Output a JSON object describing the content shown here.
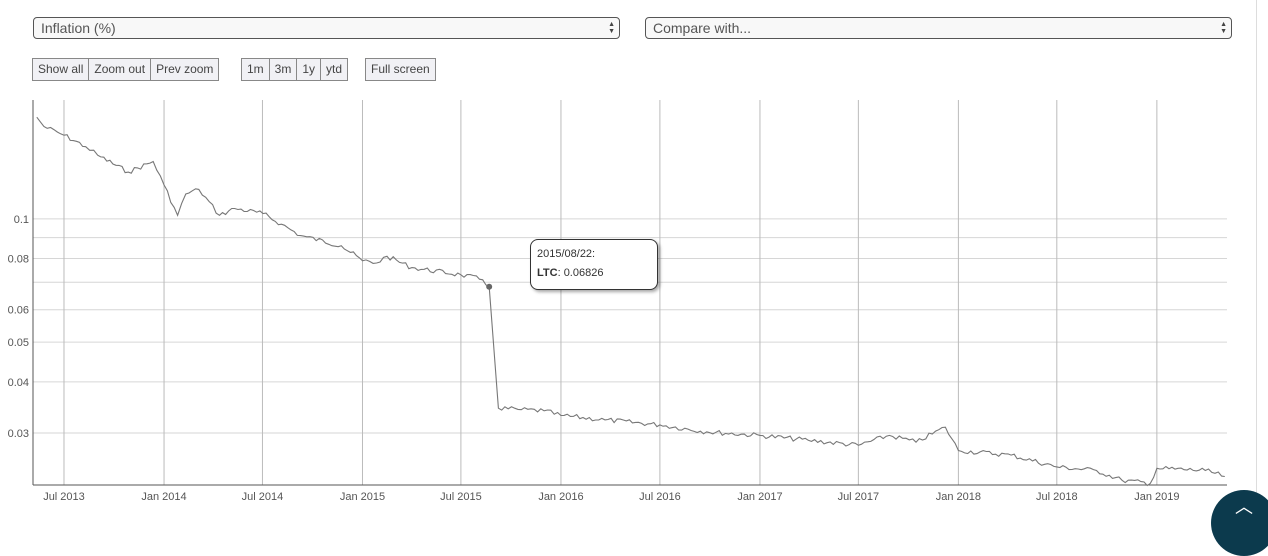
{
  "controls": {
    "metric_select": "Inflation (%)",
    "compare_select": "Compare with...",
    "zoom_buttons": [
      "Show all",
      "Zoom out",
      "Prev zoom"
    ],
    "range_buttons": [
      "1m",
      "3m",
      "1y",
      "ytd"
    ],
    "fullscreen": "Full screen"
  },
  "tooltip": {
    "date": "2015/08/22:",
    "series": "LTC",
    "value": ": 0.06826"
  },
  "colors": {
    "line": "#777777",
    "grid": "#d0d0d0",
    "scroll_top_button": "#0c3a4d"
  },
  "icons": {
    "scroll_top": "chevron-up-icon",
    "select_arrows": "up-down-arrows-icon"
  },
  "chart_data": {
    "type": "line",
    "yscale": "log",
    "ylim": [
      0.0224,
      0.195
    ],
    "grid": true,
    "ytick_labels": [
      "0.1",
      "0.08",
      "0.06",
      "0.05",
      "0.04",
      "0.03"
    ],
    "yticks": [
      0.1,
      0.08,
      0.06,
      0.05,
      0.04,
      0.03
    ],
    "ygrid_extra": [
      0.09,
      0.07
    ],
    "xtick_labels": [
      "Jul 2013",
      "Jan 2014",
      "Jul 2014",
      "Jan 2015",
      "Jul 2015",
      "Jan 2016",
      "Jul 2016",
      "Jan 2017",
      "Jul 2017",
      "Jan 2018",
      "Jul 2018",
      "Jan 2019"
    ],
    "xticks": [
      "2013-07-01",
      "2014-01-01",
      "2014-07-01",
      "2015-01-01",
      "2015-07-01",
      "2016-01-01",
      "2016-07-01",
      "2017-01-01",
      "2017-07-01",
      "2018-01-01",
      "2018-07-01",
      "2019-01-01"
    ],
    "xlim": [
      "2013-05-05",
      "2019-05-10"
    ],
    "highlight": {
      "x": "2015-08-22",
      "y": 0.06826
    },
    "series": [
      {
        "name": "LTC",
        "x": [
          "2013-05-12",
          "2013-05-25",
          "2013-07-01",
          "2013-08-10",
          "2013-09-01",
          "2013-10-27",
          "2013-12-12",
          "2014-01-01",
          "2014-01-26",
          "2014-02-10",
          "2014-03-06",
          "2014-04-13",
          "2014-05-11",
          "2014-07-02",
          "2014-08-05",
          "2014-09-09",
          "2014-11-23",
          "2015-01-01",
          "2015-01-27",
          "2015-02-15",
          "2015-04-02",
          "2015-07-01",
          "2015-08-10",
          "2015-08-22",
          "2015-09-08",
          "2015-10-20",
          "2015-12-01",
          "2016-01-01",
          "2016-03-22",
          "2016-07-01",
          "2016-09-25",
          "2017-01-01",
          "2017-03-31",
          "2017-07-01",
          "2017-08-27",
          "2017-10-15",
          "2017-12-08",
          "2018-01-01",
          "2018-04-08",
          "2018-07-01",
          "2018-09-12",
          "2018-10-29",
          "2018-12-20",
          "2019-01-01",
          "2019-03-31",
          "2019-05-06"
        ],
        "y": [
          0.177,
          0.168,
          0.16,
          0.15,
          0.143,
          0.13,
          0.138,
          0.121,
          0.102,
          0.115,
          0.118,
          0.102,
          0.106,
          0.103,
          0.097,
          0.091,
          0.086,
          0.079,
          0.078,
          0.081,
          0.076,
          0.073,
          0.071,
          0.06826,
          0.0345,
          0.0342,
          0.034,
          0.0331,
          0.0323,
          0.0314,
          0.0302,
          0.0296,
          0.0288,
          0.028,
          0.0296,
          0.0285,
          0.031,
          0.0272,
          0.0265,
          0.0248,
          0.0243,
          0.023,
          0.0226,
          0.0246,
          0.0243,
          0.0235
        ]
      }
    ]
  }
}
